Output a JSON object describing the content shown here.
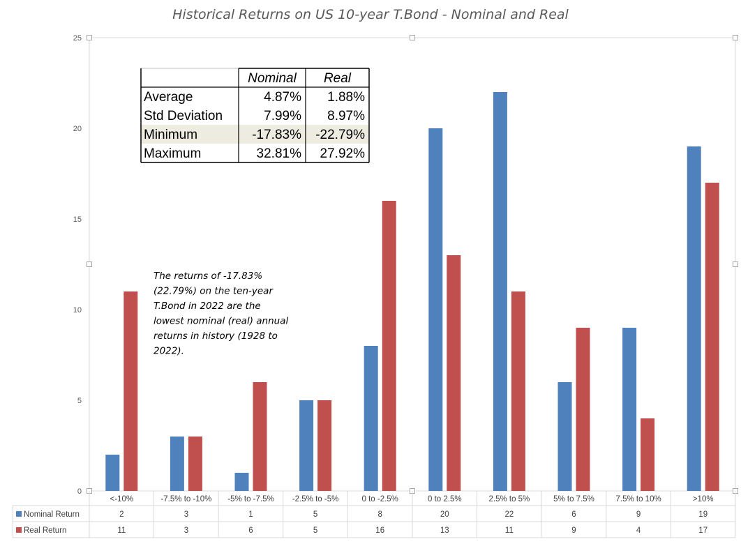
{
  "chart_data": {
    "type": "bar",
    "title": "Historical Returns on US 10-year T.Bond - Nominal and Real",
    "categories": [
      "<-10%",
      "-7.5% to -10%",
      "-5% to -7.5%",
      "-2.5% to -5%",
      "0 to -2.5%",
      "0 to 2.5%",
      "2.5% to 5%",
      "5% to 7.5%",
      "7.5% to 10%",
      ">10%"
    ],
    "series": [
      {
        "name": "Nominal Return",
        "color": "#4f81bd",
        "values": [
          2,
          3,
          1,
          5,
          8,
          20,
          22,
          6,
          9,
          19
        ]
      },
      {
        "name": "Real Return",
        "color": "#c0504d",
        "values": [
          11,
          3,
          6,
          5,
          16,
          13,
          11,
          9,
          4,
          17
        ]
      }
    ],
    "ylim": [
      0,
      25
    ],
    "yticks": [
      "0",
      "5",
      "10",
      "15",
      "20",
      "25"
    ],
    "grid": false,
    "legend": "data-table",
    "annotation": [
      "The returns of -17.83%",
      "(22.79%) on the ten-year",
      "T.Bond in 2022 are the",
      "lowest nominal (real) annual",
      "returns in history (1928 to",
      "2022)."
    ],
    "stats_table": {
      "headers": [
        "",
        "Nominal",
        "Real"
      ],
      "rows": [
        {
          "label": "Average",
          "nominal": "4.87%",
          "real": "1.88%"
        },
        {
          "label": "Std Deviation",
          "nominal": "7.99%",
          "real": "8.97%"
        },
        {
          "label": "Minimum",
          "nominal": "-17.83%",
          "real": "-22.79%"
        },
        {
          "label": "Maximum",
          "nominal": "32.81%",
          "real": "27.92%"
        }
      ]
    }
  }
}
